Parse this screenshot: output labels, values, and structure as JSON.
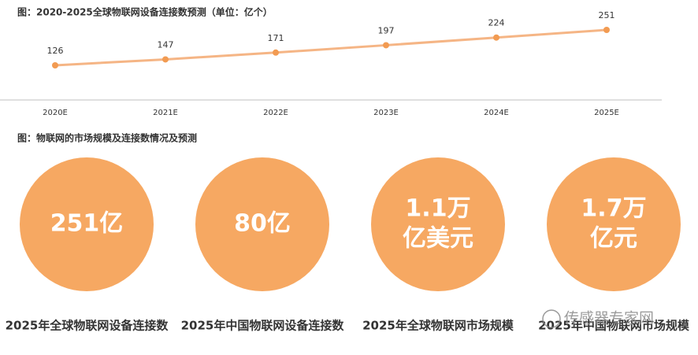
{
  "chart_data": {
    "type": "line",
    "title": "图：2020-2025全球物联网设备连接数预测（单位：亿个）",
    "categories": [
      "2020E",
      "2021E",
      "2022E",
      "2023E",
      "2024E",
      "2025E"
    ],
    "series": [
      {
        "name": "全球物联网设备连接数",
        "color": "#f5b585",
        "values": [
          126,
          147,
          171,
          197,
          224,
          251
        ]
      }
    ],
    "marker_color": "#f29b52"
  },
  "infographic": {
    "title": "图：物联网的市场规模及连接数情况及预测",
    "color": "#f6a862",
    "items": [
      {
        "value_text": [
          "251亿"
        ],
        "label": "2025年全球物联网设备连接数"
      },
      {
        "value_text": [
          "80亿"
        ],
        "label": "2025年中国物联网设备连接数"
      },
      {
        "value_text": [
          "1.1万",
          "亿美元"
        ],
        "label": "2025年全球物联网市场规模"
      },
      {
        "value_text": [
          "1.7万",
          "亿元"
        ],
        "label": "2025年中国物联网市场规模"
      }
    ]
  },
  "watermark": "传感器专家网"
}
